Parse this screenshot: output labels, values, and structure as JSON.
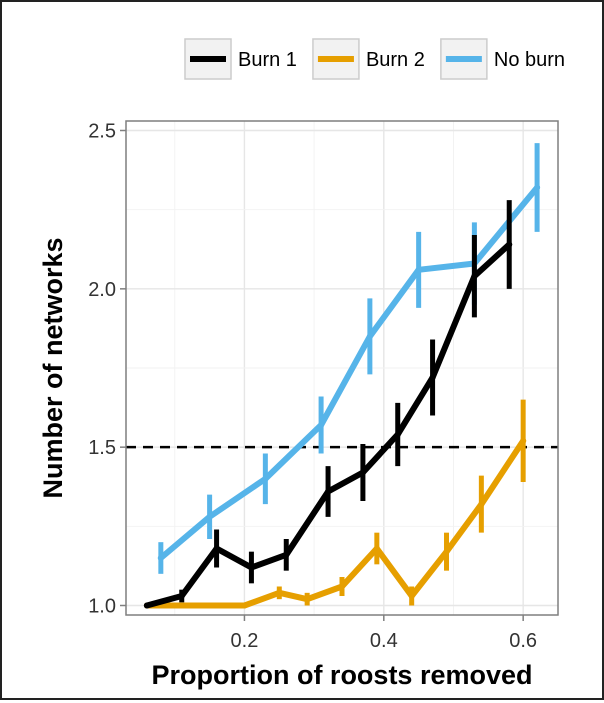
{
  "chart_data": {
    "type": "line",
    "xlabel": "Proportion of roosts removed",
    "ylabel": "Number of networks",
    "xlim": [
      0.03,
      0.65
    ],
    "ylim": [
      0.97,
      2.53
    ],
    "xticks": [
      0.2,
      0.4,
      0.6
    ],
    "xtick_labels": [
      "0.2",
      "0.4",
      "0.6"
    ],
    "yticks": [
      1.0,
      1.5,
      2.0,
      2.5
    ],
    "ytick_labels": [
      "1.0",
      "1.5",
      "2.0",
      "2.5"
    ],
    "grid": true,
    "legend_position": "top",
    "reference_line": {
      "y": 1.5,
      "style": "dashed"
    },
    "series": [
      {
        "name": "Burn 1",
        "color": "#000000",
        "x": [
          0.06,
          0.11,
          0.16,
          0.21,
          0.26,
          0.32,
          0.37,
          0.42,
          0.47,
          0.53,
          0.58
        ],
        "y": [
          1.0,
          1.03,
          1.18,
          1.12,
          1.16,
          1.36,
          1.42,
          1.54,
          1.72,
          2.04,
          2.14
        ],
        "err": [
          0.0,
          0.02,
          0.06,
          0.05,
          0.05,
          0.08,
          0.09,
          0.1,
          0.12,
          0.13,
          0.14
        ]
      },
      {
        "name": "Burn 2",
        "color": "#E69F00",
        "x": [
          0.06,
          0.11,
          0.16,
          0.2,
          0.25,
          0.29,
          0.34,
          0.39,
          0.44,
          0.49,
          0.54,
          0.6
        ],
        "y": [
          1.0,
          1.0,
          1.0,
          1.0,
          1.04,
          1.02,
          1.06,
          1.18,
          1.03,
          1.17,
          1.32,
          1.52
        ],
        "err": [
          0.0,
          0.0,
          0.0,
          0.0,
          0.02,
          0.02,
          0.03,
          0.05,
          0.03,
          0.06,
          0.09,
          0.13
        ]
      },
      {
        "name": "No burn",
        "color": "#56B4E9",
        "x": [
          0.08,
          0.15,
          0.23,
          0.31,
          0.38,
          0.45,
          0.53,
          0.62
        ],
        "y": [
          1.15,
          1.28,
          1.4,
          1.57,
          1.85,
          2.06,
          2.08,
          2.32
        ],
        "err": [
          0.05,
          0.07,
          0.08,
          0.09,
          0.12,
          0.12,
          0.13,
          0.14
        ]
      }
    ]
  }
}
